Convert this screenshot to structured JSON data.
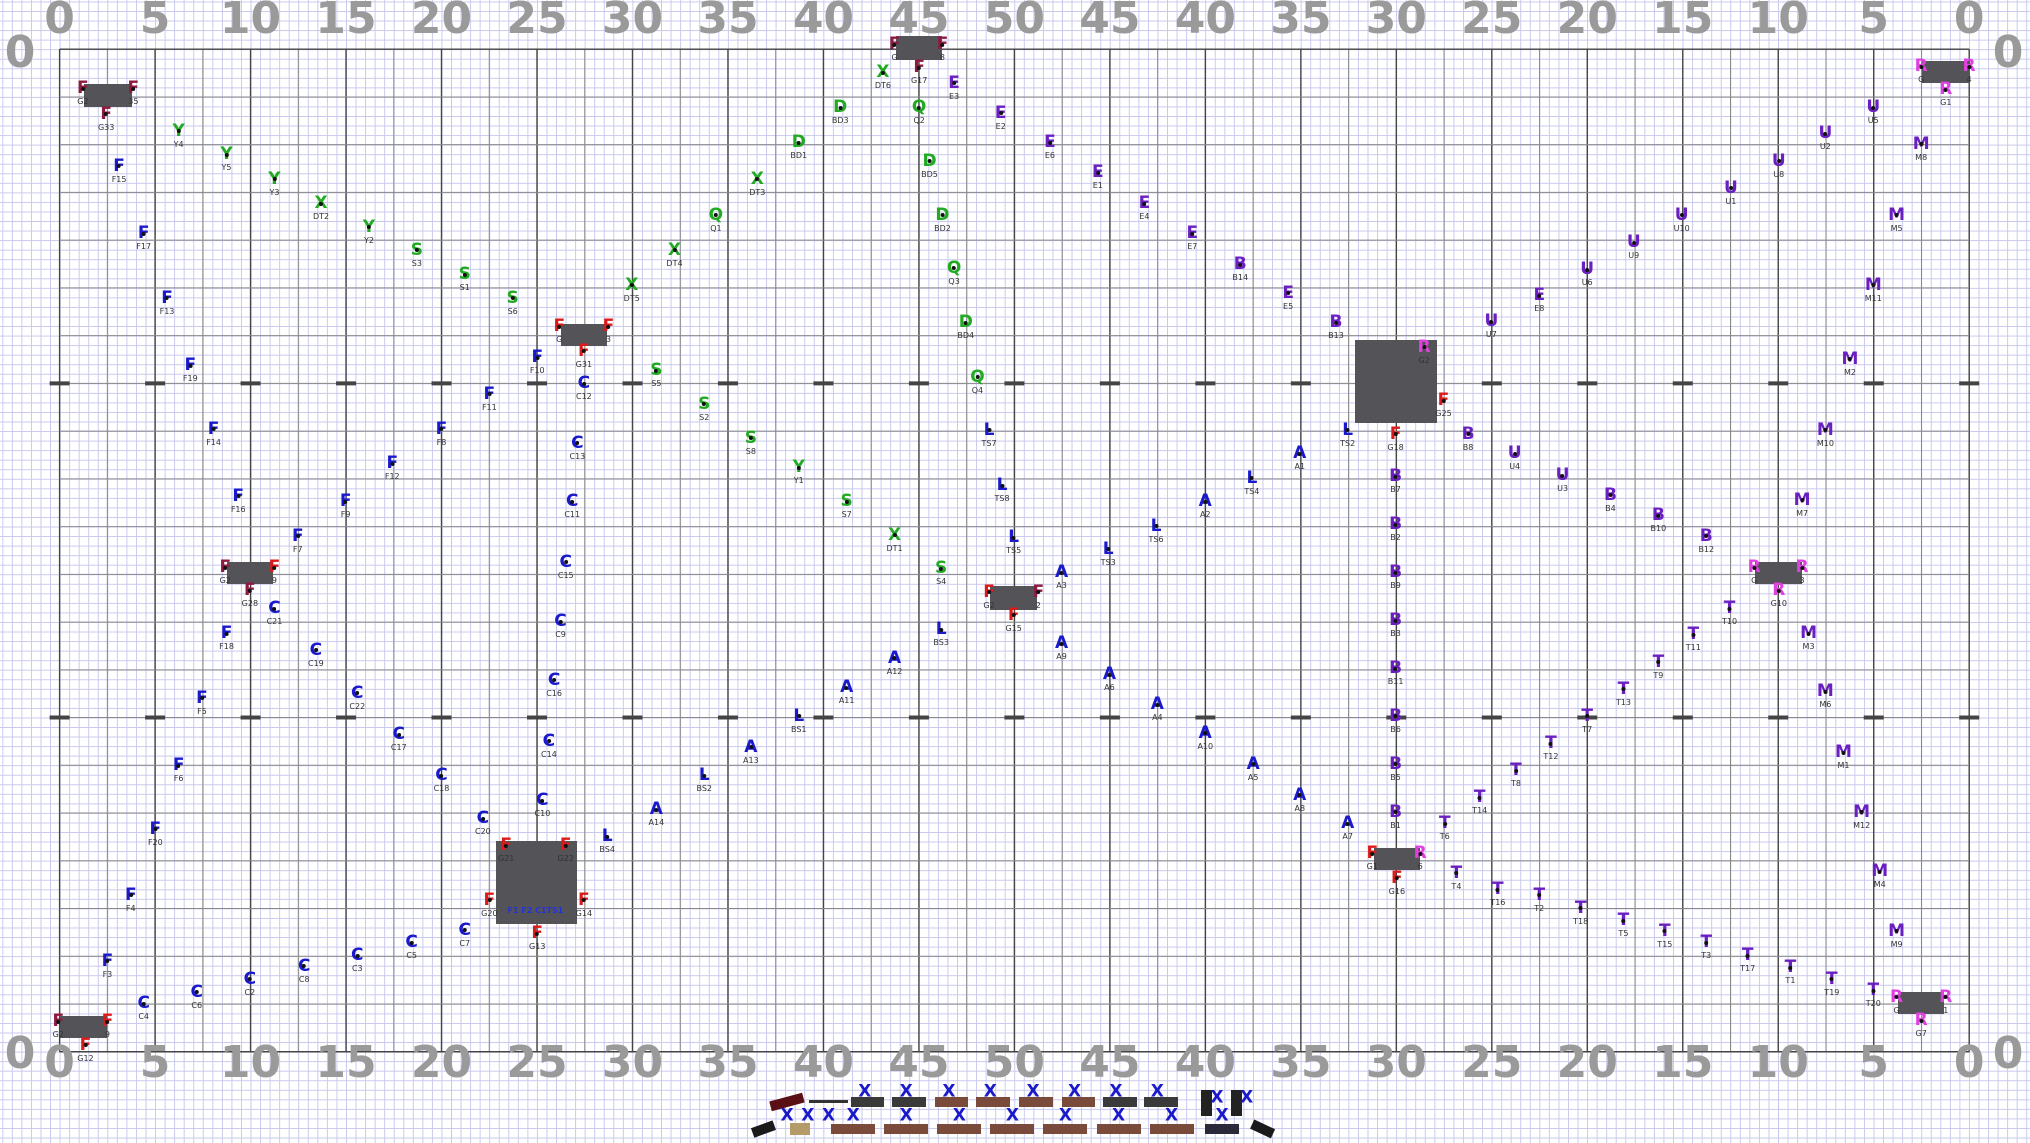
{
  "colors": {
    "blue": "#1a1acc",
    "red": "#dd1a1a",
    "maroon": "#8e1a40",
    "green": "#22aa22",
    "purple": "#6a1fc0",
    "pink": "#e040e0",
    "grid_fine": "#c8c8ee",
    "grid_major": "#555555",
    "block": "#545358",
    "yard_number": "#9a9a9a"
  },
  "field": {
    "top_numbers": [
      "0",
      "5",
      "10",
      "15",
      "20",
      "25",
      "30",
      "35",
      "40",
      "45",
      "50",
      "45",
      "40",
      "35",
      "30",
      "25",
      "20",
      "15",
      "10",
      "5",
      "0"
    ],
    "bottom_numbers": [
      "0",
      "5",
      "10",
      "15",
      "20",
      "25",
      "30",
      "35",
      "40",
      "45",
      "50",
      "45",
      "40",
      "35",
      "30",
      "25",
      "20",
      "15",
      "10",
      "5",
      "0"
    ],
    "side_number": "0"
  },
  "markers": [
    [
      "F",
      "F15",
      "blue"
    ],
    [
      "F",
      "F17",
      "blue"
    ],
    [
      "F",
      "F13",
      "blue"
    ],
    [
      "F",
      "F19",
      "blue"
    ],
    [
      "F",
      "F14",
      "blue"
    ],
    [
      "F",
      "F16",
      "blue"
    ],
    [
      "F",
      "F7",
      "blue"
    ],
    [
      "F",
      "F18",
      "blue"
    ],
    [
      "F",
      "F5",
      "blue"
    ],
    [
      "F",
      "F6",
      "blue"
    ],
    [
      "F",
      "F20",
      "blue"
    ],
    [
      "F",
      "F4",
      "blue"
    ],
    [
      "F",
      "F3",
      "blue"
    ],
    [
      "F",
      "F10",
      "blue"
    ],
    [
      "F",
      "F11",
      "blue"
    ],
    [
      "F",
      "F8",
      "blue"
    ],
    [
      "F",
      "F12",
      "blue"
    ],
    [
      "F",
      "F9",
      "blue"
    ],
    [
      "Y",
      "Y4",
      "green"
    ],
    [
      "Y",
      "Y5",
      "green"
    ],
    [
      "Y",
      "Y3",
      "green"
    ],
    [
      "Y",
      "Y2",
      "green"
    ],
    [
      "Y",
      "Y1",
      "green"
    ],
    [
      "X",
      "DT2",
      "green"
    ],
    [
      "X",
      "DT5",
      "green"
    ],
    [
      "X",
      "DT4",
      "green"
    ],
    [
      "X",
      "DT3",
      "green"
    ],
    [
      "X",
      "DT6",
      "green"
    ],
    [
      "X",
      "DT1",
      "green"
    ],
    [
      "S",
      "S3",
      "green"
    ],
    [
      "S",
      "S1",
      "green"
    ],
    [
      "S",
      "S6",
      "green"
    ],
    [
      "S",
      "S5",
      "green"
    ],
    [
      "S",
      "S2",
      "green"
    ],
    [
      "S",
      "S8",
      "green"
    ],
    [
      "S",
      "S7",
      "green"
    ],
    [
      "S",
      "S4",
      "green"
    ],
    [
      "Q",
      "Q1",
      "green"
    ],
    [
      "Q",
      "Q2",
      "green"
    ],
    [
      "Q",
      "Q3",
      "green"
    ],
    [
      "Q",
      "Q4",
      "green"
    ],
    [
      "D",
      "BD3",
      "green"
    ],
    [
      "D",
      "BD1",
      "green"
    ],
    [
      "D",
      "BD5",
      "green"
    ],
    [
      "D",
      "BD2",
      "green"
    ],
    [
      "D",
      "BD4",
      "green"
    ],
    [
      "C",
      "C12",
      "blue"
    ],
    [
      "C",
      "C13",
      "blue"
    ],
    [
      "C",
      "C11",
      "blue"
    ],
    [
      "C",
      "C15",
      "blue"
    ],
    [
      "C",
      "C9",
      "blue"
    ],
    [
      "C",
      "C16",
      "blue"
    ],
    [
      "C",
      "C14",
      "blue"
    ],
    [
      "C",
      "C10",
      "blue"
    ],
    [
      "C",
      "C21",
      "blue"
    ],
    [
      "C",
      "C19",
      "blue"
    ],
    [
      "C",
      "C22",
      "blue"
    ],
    [
      "C",
      "C17",
      "blue"
    ],
    [
      "C",
      "C18",
      "blue"
    ],
    [
      "C",
      "C20",
      "blue"
    ],
    [
      "C",
      "C7",
      "blue"
    ],
    [
      "C",
      "C5",
      "blue"
    ],
    [
      "C",
      "C3",
      "blue"
    ],
    [
      "C",
      "C8",
      "blue"
    ],
    [
      "C",
      "C2",
      "blue"
    ],
    [
      "C",
      "C6",
      "blue"
    ],
    [
      "C",
      "C4",
      "blue"
    ],
    [
      "L",
      "BS4",
      "blue"
    ],
    [
      "L",
      "BS1",
      "blue"
    ],
    [
      "L",
      "BS2",
      "blue"
    ],
    [
      "L",
      "BS3",
      "blue"
    ],
    [
      "L",
      "TS7",
      "blue"
    ],
    [
      "L",
      "TS8",
      "blue"
    ],
    [
      "L",
      "TS5",
      "blue"
    ],
    [
      "L",
      "TS3",
      "blue"
    ],
    [
      "L",
      "TS6",
      "blue"
    ],
    [
      "L",
      "TS4",
      "blue"
    ],
    [
      "L",
      "TS2",
      "blue"
    ],
    [
      "A",
      "A14",
      "blue"
    ],
    [
      "A",
      "A13",
      "blue"
    ],
    [
      "A",
      "A11",
      "blue"
    ],
    [
      "A",
      "A12",
      "blue"
    ],
    [
      "A",
      "A3",
      "blue"
    ],
    [
      "A",
      "A9",
      "blue"
    ],
    [
      "A",
      "A6",
      "blue"
    ],
    [
      "A",
      "A4",
      "blue"
    ],
    [
      "A",
      "A10",
      "blue"
    ],
    [
      "A",
      "A5",
      "blue"
    ],
    [
      "A",
      "A8",
      "blue"
    ],
    [
      "A",
      "A7",
      "blue"
    ],
    [
      "A",
      "A2",
      "blue"
    ],
    [
      "A",
      "A1",
      "blue"
    ],
    [
      "E",
      "E3",
      "purple"
    ],
    [
      "E",
      "E2",
      "purple"
    ],
    [
      "E",
      "E6",
      "purple"
    ],
    [
      "E",
      "E1",
      "purple"
    ],
    [
      "E",
      "E4",
      "purple"
    ],
    [
      "E",
      "E7",
      "purple"
    ],
    [
      "E",
      "E5",
      "purple"
    ],
    [
      "E",
      "E8",
      "purple"
    ],
    [
      "B",
      "B14",
      "purple"
    ],
    [
      "B",
      "B13",
      "purple"
    ],
    [
      "B",
      "B8",
      "purple"
    ],
    [
      "B",
      "B7",
      "purple"
    ],
    [
      "B",
      "B2",
      "purple"
    ],
    [
      "B",
      "B9",
      "purple"
    ],
    [
      "B",
      "B3",
      "purple"
    ],
    [
      "B",
      "B11",
      "purple"
    ],
    [
      "B",
      "B6",
      "purple"
    ],
    [
      "B",
      "B5",
      "purple"
    ],
    [
      "B",
      "B1",
      "purple"
    ],
    [
      "B",
      "B4",
      "purple"
    ],
    [
      "B",
      "B10",
      "purple"
    ],
    [
      "B",
      "B12",
      "purple"
    ],
    [
      "U",
      "U5",
      "purple"
    ],
    [
      "U",
      "U2",
      "purple"
    ],
    [
      "U",
      "U8",
      "purple"
    ],
    [
      "U",
      "U1",
      "purple"
    ],
    [
      "U",
      "U10",
      "purple"
    ],
    [
      "U",
      "U9",
      "purple"
    ],
    [
      "U",
      "U6",
      "purple"
    ],
    [
      "U",
      "U7",
      "purple"
    ],
    [
      "U",
      "U4",
      "purple"
    ],
    [
      "U",
      "U3",
      "purple"
    ],
    [
      "M",
      "M8",
      "purple"
    ],
    [
      "M",
      "M5",
      "purple"
    ],
    [
      "M",
      "M11",
      "purple"
    ],
    [
      "M",
      "M2",
      "purple"
    ],
    [
      "M",
      "M10",
      "purple"
    ],
    [
      "M",
      "M7",
      "purple"
    ],
    [
      "M",
      "M3",
      "purple"
    ],
    [
      "M",
      "M6",
      "purple"
    ],
    [
      "M",
      "M1",
      "purple"
    ],
    [
      "M",
      "M12",
      "purple"
    ],
    [
      "M",
      "M4",
      "purple"
    ],
    [
      "M",
      "M9",
      "purple"
    ],
    [
      "T",
      "T10",
      "purple"
    ],
    [
      "T",
      "T11",
      "purple"
    ],
    [
      "T",
      "T9",
      "purple"
    ],
    [
      "T",
      "T13",
      "purple"
    ],
    [
      "T",
      "T7",
      "purple"
    ],
    [
      "T",
      "T12",
      "purple"
    ],
    [
      "T",
      "T8",
      "purple"
    ],
    [
      "T",
      "T14",
      "purple"
    ],
    [
      "T",
      "T6",
      "purple"
    ],
    [
      "T",
      "T4",
      "purple"
    ],
    [
      "T",
      "T16",
      "purple"
    ],
    [
      "T",
      "T2",
      "purple"
    ],
    [
      "T",
      "T18",
      "purple"
    ],
    [
      "T",
      "T5",
      "purple"
    ],
    [
      "T",
      "T15",
      "purple"
    ],
    [
      "T",
      "T3",
      "purple"
    ],
    [
      "T",
      "T17",
      "purple"
    ],
    [
      "T",
      "T1",
      "purple"
    ],
    [
      "T",
      "T19",
      "purple"
    ],
    [
      "T",
      "T20",
      "purple"
    ]
  ],
  "block_markers": [
    [
      "F",
      "G2",
      "maroon"
    ],
    [
      "F",
      "35",
      "maroon"
    ],
    [
      "F",
      "G33",
      "maroon"
    ],
    [
      "F",
      "G",
      "red"
    ],
    [
      "F",
      "3",
      "red"
    ],
    [
      "F",
      "G31",
      "red"
    ],
    [
      "F",
      "G",
      "maroon"
    ],
    [
      "F",
      "8",
      "maroon"
    ],
    [
      "F",
      "G17",
      "maroon"
    ],
    [
      "F",
      "G2",
      "maroon"
    ],
    [
      "F",
      "9",
      "red"
    ],
    [
      "F",
      "G28",
      "maroon"
    ],
    [
      "F",
      "G2",
      "red"
    ],
    [
      "F",
      "2",
      "maroon"
    ],
    [
      "F",
      "G15",
      "red"
    ],
    [
      "R",
      "G2",
      "pink"
    ],
    [
      "F",
      "G25",
      "red"
    ],
    [
      "F",
      "G18",
      "red"
    ],
    [
      "F",
      "G1",
      "red"
    ],
    [
      "R",
      "6",
      "pink"
    ],
    [
      "F",
      "G16",
      "red"
    ],
    [
      "R",
      "G",
      "pink"
    ],
    [
      "R",
      "3",
      "pink"
    ],
    [
      "R",
      "G10",
      "pink"
    ],
    [
      "R",
      "G",
      "pink"
    ],
    [
      "R",
      "1",
      "pink"
    ],
    [
      "R",
      "G7",
      "pink"
    ],
    [
      "R",
      "G",
      "pink"
    ],
    [
      "R",
      "4",
      "pink"
    ],
    [
      "R",
      "G1",
      "pink"
    ],
    [
      "F",
      "G2",
      "maroon"
    ],
    [
      "F",
      "9",
      "red"
    ],
    [
      "F",
      "G12",
      "red"
    ],
    [
      "F",
      "G21",
      "red"
    ],
    [
      "F",
      "G22",
      "red"
    ],
    [
      "F",
      "G20",
      "red"
    ],
    [
      "F",
      "G14",
      "red"
    ],
    [
      "F",
      "G13",
      "red"
    ]
  ],
  "riser_inner_labels": "F1 F2 C1TS1",
  "props": {
    "row1": [
      "drum-cart",
      "mallet-rack",
      "vibraphone",
      "vibraphone",
      "marimba",
      "marimba",
      "marimba",
      "marimba",
      "vibraphone",
      "vibraphone",
      "tall-rack",
      "tall-rack"
    ],
    "row2": [
      "amp",
      "gong",
      "marimba",
      "marimba",
      "marimba",
      "marimba",
      "marimba",
      "marimba",
      "marimba",
      "keyboard",
      "amp"
    ],
    "x_mark": "X"
  }
}
